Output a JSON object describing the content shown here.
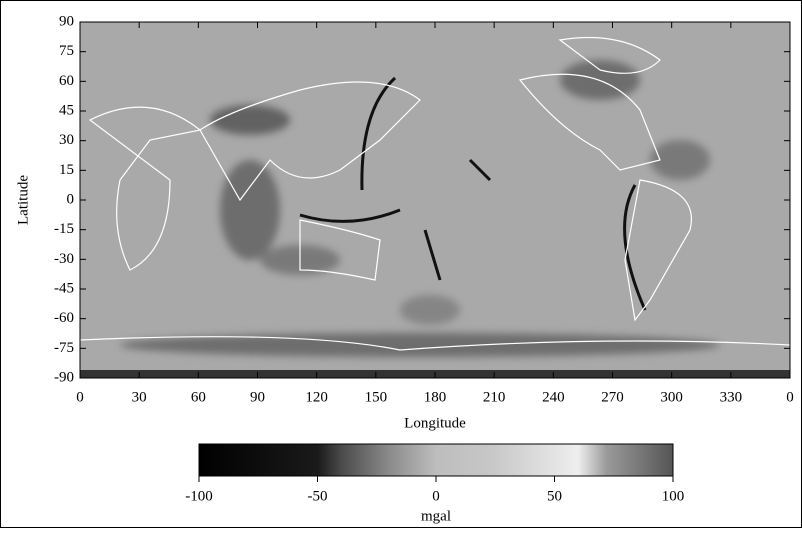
{
  "chart_data": {
    "type": "heatmap",
    "xlabel": "Longitude",
    "ylabel": "Latitude",
    "xlim": [
      0,
      360
    ],
    "ylim": [
      -90,
      90
    ],
    "xticks": [
      0,
      30,
      60,
      90,
      120,
      150,
      180,
      210,
      240,
      270,
      300,
      330,
      {
        "value": 360,
        "label": "0"
      }
    ],
    "yticks": [
      90,
      75,
      60,
      45,
      30,
      15,
      0,
      -15,
      -30,
      -45,
      -60,
      -75,
      -90
    ],
    "colorbar": {
      "label": "mgal",
      "lim": [
        -100,
        100
      ],
      "ticks": [
        -100,
        -50,
        0,
        50,
        100
      ]
    }
  }
}
